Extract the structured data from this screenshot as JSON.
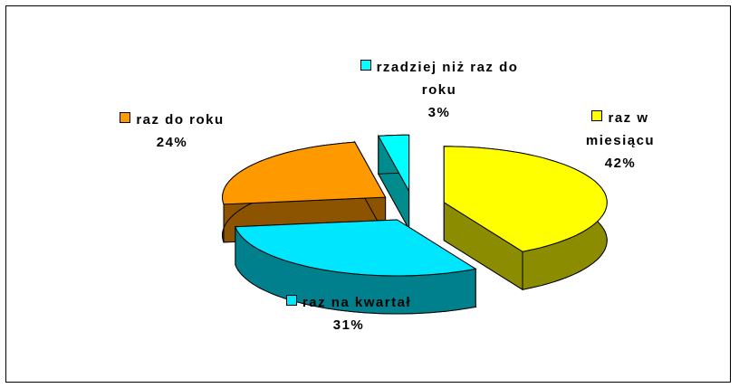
{
  "chart_data": {
    "type": "pie3d",
    "categories": [
      "raz w miesiącu",
      "raz na kwartał",
      "raz do roku",
      "rzadziej niż raz do roku"
    ],
    "values": [
      42,
      31,
      24,
      3
    ],
    "value_labels": [
      "42%",
      "31%",
      "24%",
      "3%"
    ],
    "colors": [
      "#ffff00",
      "#00e6ff",
      "#ff9900",
      "#00ffff"
    ]
  }
}
